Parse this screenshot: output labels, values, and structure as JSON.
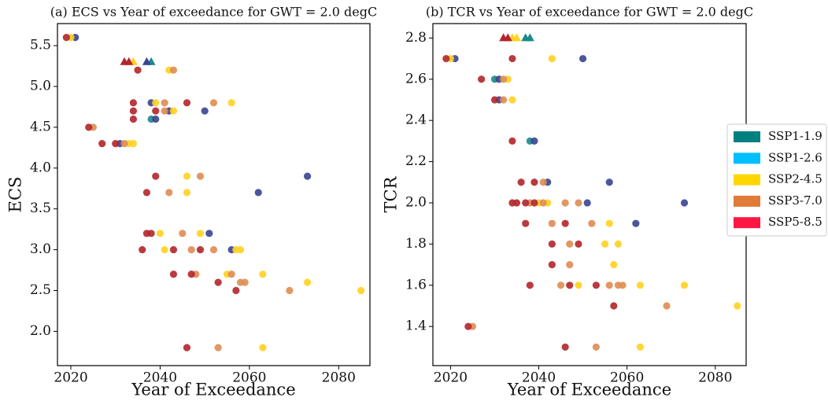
{
  "chart_data": [
    {
      "type": "scatter",
      "title": "(a) ECS vs Year of exceedance for GWT = 2.0 degC",
      "x_label": "Year of Exceedance",
      "y_label": "ECS",
      "xlim": [
        2017,
        2087
      ],
      "ylim": [
        1.58,
        5.77
      ],
      "xticks": [
        2020,
        2040,
        2060,
        2080
      ],
      "yticks": [
        {
          "value": 2,
          "label": "2.0"
        },
        2.5,
        {
          "value": 3,
          "label": "3.0"
        },
        3.5,
        {
          "value": 4,
          "label": "4.0"
        },
        4.5,
        {
          "value": 5,
          "label": "5.0"
        },
        5.5
      ],
      "series": [
        {
          "color": "#1b8a8a",
          "x": [
            2038
          ],
          "y": [
            4.6
          ],
          "triangle_x": [
            2038
          ],
          "triangle_y": [
            5.3
          ]
        },
        {
          "color": "#3a4490",
          "x": [
            2021,
            2038,
            2042,
            2050,
            2039,
            2031,
            2073,
            2062,
            2051,
            2056
          ],
          "y": [
            5.6,
            4.8,
            4.7,
            4.7,
            4.6,
            4.3,
            3.9,
            3.7,
            3.2,
            3.0
          ],
          "triangle_x": [
            2037
          ],
          "triangle_y": [
            5.3
          ]
        },
        {
          "color": "#ffd21f",
          "x": [
            2020,
            2042,
            2039,
            2056,
            2043,
            2033,
            2034,
            2046,
            2046,
            2040,
            2049,
            2041,
            2057,
            2058,
            2055,
            2063,
            2073,
            2085,
            2063
          ],
          "y": [
            5.6,
            5.2,
            4.8,
            4.8,
            4.7,
            4.3,
            4.3,
            3.9,
            3.7,
            3.2,
            3.2,
            3.0,
            3.0,
            3.0,
            2.7,
            2.7,
            2.6,
            2.5,
            1.8
          ],
          "triangle_x": [
            2034
          ],
          "triangle_y": [
            5.3
          ]
        },
        {
          "color": "#df8c52",
          "x": [
            2043,
            2041,
            2052,
            2041,
            2025,
            2032,
            2049,
            2042,
            2045,
            2047,
            2052,
            2048,
            2056,
            2058,
            2059,
            2069,
            2053
          ],
          "y": [
            5.2,
            4.8,
            4.8,
            4.7,
            4.5,
            4.3,
            3.9,
            3.7,
            3.2,
            3.0,
            3.0,
            2.7,
            2.7,
            2.6,
            2.6,
            2.5,
            1.8
          ],
          "triangle_x": [],
          "triangle_y": []
        },
        {
          "color": "#b3262a",
          "x": [
            2019,
            2035,
            2034,
            2046,
            2034,
            2039,
            2034,
            2024,
            2027,
            2030,
            2039,
            2037,
            2037,
            2038,
            2036,
            2043,
            2049,
            2043,
            2047,
            2053,
            2057,
            2046
          ],
          "y": [
            5.6,
            5.2,
            4.8,
            4.8,
            4.7,
            4.7,
            4.6,
            4.5,
            4.3,
            4.3,
            3.9,
            3.7,
            3.2,
            3.2,
            3.0,
            3.0,
            3.0,
            2.7,
            2.7,
            2.6,
            2.5,
            1.8
          ],
          "triangle_x": [
            2032,
            2033
          ],
          "triangle_y": [
            5.3,
            5.3
          ]
        }
      ]
    },
    {
      "type": "scatter",
      "title": "(b) TCR vs Year of exceedance for GWT = 2.0 degC",
      "x_label": "Year of Exceedance",
      "y_label": "TCR",
      "xlim": [
        2016,
        2087
      ],
      "ylim": [
        1.21,
        2.87
      ],
      "xticks": [
        2020,
        2040,
        2060,
        2080
      ],
      "yticks": [
        1.4,
        1.6,
        1.8,
        {
          "value": 2,
          "label": "2.0"
        },
        2.2,
        2.4,
        2.6,
        2.8
      ],
      "series": [
        {
          "color": "#1b8a8a",
          "x": [
            2030,
            2038
          ],
          "y": [
            2.6,
            2.3
          ],
          "triangle_x": [
            2037,
            2038
          ],
          "triangle_y": [
            2.8,
            2.8
          ]
        },
        {
          "color": "#3a4490",
          "x": [
            2021,
            2050,
            2031,
            2031,
            2039,
            2042,
            2056,
            2051,
            2073,
            2062
          ],
          "y": [
            2.7,
            2.7,
            2.6,
            2.5,
            2.3,
            2.1,
            2.1,
            2.0,
            2.0,
            1.9
          ],
          "triangle_x": [],
          "triangle_y": []
        },
        {
          "color": "#ffd21f",
          "x": [
            2020,
            2043,
            2033,
            2034,
            2040,
            2042,
            2056,
            2055,
            2058,
            2057,
            2049,
            2063,
            2073,
            2085,
            2063
          ],
          "y": [
            2.7,
            2.7,
            2.6,
            2.5,
            2.0,
            2.0,
            1.9,
            1.8,
            1.8,
            1.7,
            1.6,
            1.6,
            1.6,
            1.5,
            1.3
          ],
          "triangle_x": [
            2034,
            2035
          ],
          "triangle_y": [
            2.8,
            2.8
          ]
        },
        {
          "color": "#df8c52",
          "x": [
            2032,
            2032,
            2041,
            2038,
            2041,
            2046,
            2049,
            2043,
            2052,
            2047,
            2047,
            2045,
            2056,
            2058,
            2059,
            2069,
            2025,
            2053
          ],
          "y": [
            2.6,
            2.5,
            2.1,
            2.0,
            2.0,
            2.0,
            2.0,
            1.9,
            1.9,
            1.8,
            1.7,
            1.6,
            1.6,
            1.6,
            1.6,
            1.5,
            1.4,
            1.3
          ],
          "triangle_x": [],
          "triangle_y": []
        },
        {
          "color": "#b3262a",
          "x": [
            2019,
            2034,
            2027,
            2030,
            2034,
            2036,
            2039,
            2034,
            2035,
            2037,
            2039,
            2037,
            2046,
            2043,
            2049,
            2043,
            2038,
            2047,
            2053,
            2057,
            2024,
            2046
          ],
          "y": [
            2.7,
            2.7,
            2.6,
            2.5,
            2.3,
            2.1,
            2.1,
            2.0,
            2.0,
            2.0,
            2.0,
            1.9,
            1.9,
            1.8,
            1.8,
            1.7,
            1.6,
            1.6,
            1.6,
            1.5,
            1.4,
            1.3
          ],
          "triangle_x": [
            2032,
            2033
          ],
          "triangle_y": [
            2.8,
            2.8
          ]
        }
      ]
    }
  ],
  "legend": [
    {
      "label": "SSP1-1.9",
      "color": "#008080"
    },
    {
      "label": "SSP1-2.6",
      "color": "#00bfff"
    },
    {
      "label": "SSP2-4.5",
      "color": "#ffd700"
    },
    {
      "label": "SSP3-7.0",
      "color": "#e07b39"
    },
    {
      "label": "SSP5-8.5",
      "color": "#ff1744"
    }
  ]
}
